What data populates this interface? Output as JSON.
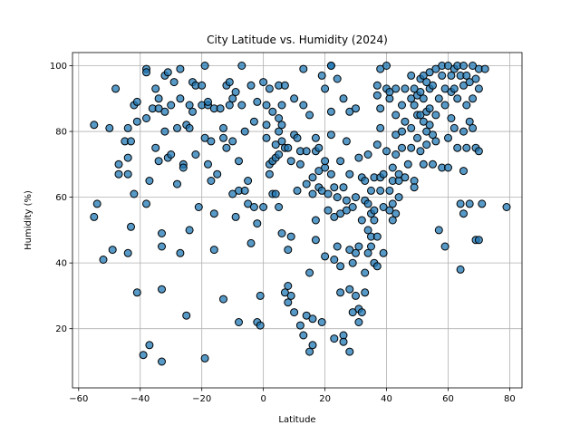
{
  "chart_data": {
    "type": "scatter",
    "title": "City Latitude vs. Humidity (2024)",
    "xlabel": "Latitude",
    "ylabel": "Humidity (%)",
    "xlim": [
      -62,
      84
    ],
    "ylim": [
      2,
      104
    ],
    "xticks": [
      -60,
      -40,
      -20,
      0,
      20,
      40,
      60,
      80
    ],
    "yticks": [
      20,
      40,
      60,
      80,
      100
    ],
    "grid": true,
    "marker_color": "#1f77b4",
    "marker_alpha": 0.75,
    "marker_edge_color": "#000000",
    "points": [
      [
        -55,
        82
      ],
      [
        -55,
        54
      ],
      [
        -54,
        58
      ],
      [
        -52,
        41
      ],
      [
        -50,
        81
      ],
      [
        -49,
        44
      ],
      [
        -48,
        93
      ],
      [
        -47,
        67
      ],
      [
        -47,
        70
      ],
      [
        -45,
        77
      ],
      [
        -44,
        72
      ],
      [
        -44,
        81
      ],
      [
        -44,
        67
      ],
      [
        -44,
        43
      ],
      [
        -43,
        51
      ],
      [
        -43,
        77
      ],
      [
        -42,
        88
      ],
      [
        -42,
        61
      ],
      [
        -41,
        83
      ],
      [
        -41,
        31
      ],
      [
        -41,
        89
      ],
      [
        -39,
        12
      ],
      [
        -38,
        99
      ],
      [
        -38,
        98
      ],
      [
        -38,
        84
      ],
      [
        -38,
        58
      ],
      [
        -37,
        65
      ],
      [
        -37,
        15
      ],
      [
        -36,
        87
      ],
      [
        -35,
        75
      ],
      [
        -35,
        93
      ],
      [
        -34,
        90
      ],
      [
        -34,
        87
      ],
      [
        -34,
        71
      ],
      [
        -33,
        10
      ],
      [
        -33,
        45
      ],
      [
        -33,
        32
      ],
      [
        -33,
        49
      ],
      [
        -32,
        86
      ],
      [
        -32,
        80
      ],
      [
        -32,
        97
      ],
      [
        -31,
        98
      ],
      [
        -31,
        72
      ],
      [
        -30,
        73
      ],
      [
        -30,
        88
      ],
      [
        -29,
        95
      ],
      [
        -28,
        64
      ],
      [
        -28,
        81
      ],
      [
        -27,
        90
      ],
      [
        -27,
        43
      ],
      [
        -27,
        99
      ],
      [
        -26,
        70
      ],
      [
        -26,
        69
      ],
      [
        -25,
        82
      ],
      [
        -25,
        24
      ],
      [
        -24,
        50
      ],
      [
        -24,
        81
      ],
      [
        -24,
        88
      ],
      [
        -23,
        86
      ],
      [
        -23,
        95
      ],
      [
        -22,
        94
      ],
      [
        -22,
        73
      ],
      [
        -21,
        57
      ],
      [
        -20,
        94
      ],
      [
        -20,
        88
      ],
      [
        -19,
        11
      ],
      [
        -19,
        78
      ],
      [
        -19,
        100
      ],
      [
        -18,
        88
      ],
      [
        -18,
        89
      ],
      [
        -18,
        70
      ],
      [
        -17,
        77
      ],
      [
        -17,
        65
      ],
      [
        -16,
        55
      ],
      [
        -16,
        87
      ],
      [
        -16,
        44
      ],
      [
        -15,
        67
      ],
      [
        -14,
        87
      ],
      [
        -13,
        81
      ],
      [
        -13,
        78
      ],
      [
        -13,
        29
      ],
      [
        -12,
        94
      ],
      [
        -12,
        75
      ],
      [
        -11,
        95
      ],
      [
        -11,
        88
      ],
      [
        -10,
        90
      ],
      [
        -10,
        77
      ],
      [
        -10,
        61
      ],
      [
        -9,
        92
      ],
      [
        -9,
        54
      ],
      [
        -8,
        22
      ],
      [
        -8,
        71
      ],
      [
        -8,
        62
      ],
      [
        -7,
        100
      ],
      [
        -7,
        88
      ],
      [
        -6,
        80
      ],
      [
        -6,
        62
      ],
      [
        -5,
        65
      ],
      [
        -5,
        58
      ],
      [
        -4,
        94
      ],
      [
        -4,
        46
      ],
      [
        -3,
        83
      ],
      [
        -3,
        57
      ],
      [
        -2,
        89
      ],
      [
        -2,
        52
      ],
      [
        -2,
        22
      ],
      [
        -1,
        30
      ],
      [
        -1,
        21
      ],
      [
        0,
        57
      ],
      [
        0,
        95
      ],
      [
        1,
        88
      ],
      [
        1,
        82
      ],
      [
        1,
        78
      ],
      [
        2,
        93
      ],
      [
        2,
        70
      ],
      [
        2,
        67
      ],
      [
        3,
        86
      ],
      [
        3,
        71
      ],
      [
        3,
        61
      ],
      [
        4,
        76
      ],
      [
        4,
        72
      ],
      [
        4,
        61
      ],
      [
        5,
        94
      ],
      [
        5,
        80
      ],
      [
        5,
        73
      ],
      [
        5,
        57
      ],
      [
        5,
        84
      ],
      [
        6,
        88
      ],
      [
        6,
        82
      ],
      [
        6,
        77
      ],
      [
        6,
        49
      ],
      [
        7,
        31
      ],
      [
        7,
        75
      ],
      [
        7,
        94
      ],
      [
        8,
        28
      ],
      [
        8,
        33
      ],
      [
        8,
        44
      ],
      [
        8,
        75
      ],
      [
        9,
        48
      ],
      [
        9,
        71
      ],
      [
        9,
        30
      ],
      [
        10,
        25
      ],
      [
        10,
        90
      ],
      [
        10,
        79
      ],
      [
        11,
        62
      ],
      [
        11,
        78
      ],
      [
        12,
        70
      ],
      [
        12,
        74
      ],
      [
        12,
        21
      ],
      [
        13,
        99
      ],
      [
        13,
        18
      ],
      [
        13,
        88
      ],
      [
        14,
        24
      ],
      [
        14,
        74
      ],
      [
        14,
        64
      ],
      [
        15,
        85
      ],
      [
        15,
        37
      ],
      [
        15,
        13
      ],
      [
        16,
        66
      ],
      [
        16,
        23
      ],
      [
        16,
        61
      ],
      [
        16,
        15
      ],
      [
        17,
        78
      ],
      [
        17,
        47
      ],
      [
        17,
        53
      ],
      [
        17,
        74
      ],
      [
        18,
        68
      ],
      [
        18,
        63
      ],
      [
        18,
        75
      ],
      [
        19,
        97
      ],
      [
        19,
        62
      ],
      [
        19,
        22
      ],
      [
        20,
        93
      ],
      [
        20,
        69
      ],
      [
        20,
        42
      ],
      [
        20,
        71
      ],
      [
        21,
        61
      ],
      [
        21,
        56
      ],
      [
        22,
        100
      ],
      [
        22,
        100
      ],
      [
        22,
        86
      ],
      [
        22,
        79
      ],
      [
        22,
        67
      ],
      [
        23,
        17
      ],
      [
        23,
        63
      ],
      [
        23,
        54
      ],
      [
        23,
        41
      ],
      [
        24,
        96
      ],
      [
        24,
        60
      ],
      [
        24,
        45
      ],
      [
        25,
        39
      ],
      [
        25,
        31
      ],
      [
        25,
        55
      ],
      [
        25,
        71
      ],
      [
        26,
        90
      ],
      [
        26,
        63
      ],
      [
        26,
        18
      ],
      [
        26,
        16
      ],
      [
        27,
        77
      ],
      [
        27,
        59
      ],
      [
        27,
        56
      ],
      [
        28,
        86
      ],
      [
        28,
        67
      ],
      [
        28,
        44
      ],
      [
        28,
        32
      ],
      [
        28,
        13
      ],
      [
        29,
        25
      ],
      [
        29,
        57
      ],
      [
        29,
        40
      ],
      [
        30,
        30
      ],
      [
        30,
        60
      ],
      [
        30,
        43
      ],
      [
        30,
        87
      ],
      [
        31,
        26
      ],
      [
        31,
        45
      ],
      [
        31,
        22
      ],
      [
        31,
        72
      ],
      [
        32,
        53
      ],
      [
        32,
        25
      ],
      [
        32,
        66
      ],
      [
        33,
        65
      ],
      [
        33,
        59
      ],
      [
        33,
        37
      ],
      [
        33,
        31
      ],
      [
        34,
        73
      ],
      [
        34,
        50
      ],
      [
        34,
        58
      ],
      [
        34,
        43
      ],
      [
        35,
        48
      ],
      [
        35,
        55
      ],
      [
        35,
        62
      ],
      [
        35,
        45
      ],
      [
        36,
        40
      ],
      [
        36,
        53
      ],
      [
        36,
        56
      ],
      [
        36,
        66
      ],
      [
        37,
        94
      ],
      [
        37,
        91
      ],
      [
        37,
        76
      ],
      [
        37,
        48
      ],
      [
        37,
        39
      ],
      [
        38,
        99
      ],
      [
        38,
        87
      ],
      [
        38,
        81
      ],
      [
        38,
        66
      ],
      [
        38,
        62
      ],
      [
        39,
        43
      ],
      [
        39,
        57
      ],
      [
        39,
        67
      ],
      [
        40,
        93
      ],
      [
        40,
        74
      ],
      [
        40,
        100
      ],
      [
        41,
        90
      ],
      [
        41,
        92
      ],
      [
        41,
        56
      ],
      [
        41,
        62
      ],
      [
        42,
        69
      ],
      [
        42,
        58
      ],
      [
        42,
        65
      ],
      [
        42,
        53
      ],
      [
        43,
        93
      ],
      [
        43,
        85
      ],
      [
        43,
        79
      ],
      [
        43,
        73
      ],
      [
        43,
        55
      ],
      [
        44,
        65
      ],
      [
        44,
        60
      ],
      [
        44,
        67
      ],
      [
        45,
        88
      ],
      [
        45,
        75
      ],
      [
        45,
        80
      ],
      [
        46,
        83
      ],
      [
        46,
        93
      ],
      [
        46,
        66
      ],
      [
        47,
        70
      ],
      [
        48,
        97
      ],
      [
        48,
        90
      ],
      [
        48,
        81
      ],
      [
        48,
        75
      ],
      [
        49,
        93
      ],
      [
        49,
        88
      ],
      [
        49,
        65
      ],
      [
        49,
        63
      ],
      [
        50,
        91
      ],
      [
        50,
        85
      ],
      [
        50,
        78
      ],
      [
        51,
        96
      ],
      [
        51,
        92
      ],
      [
        51,
        85
      ],
      [
        51,
        74
      ],
      [
        52,
        97
      ],
      [
        52,
        90
      ],
      [
        52,
        83
      ],
      [
        52,
        70
      ],
      [
        53,
        95
      ],
      [
        53,
        86
      ],
      [
        53,
        80
      ],
      [
        53,
        76
      ],
      [
        54,
        98
      ],
      [
        54,
        93
      ],
      [
        54,
        87
      ],
      [
        54,
        82
      ],
      [
        55,
        94
      ],
      [
        55,
        79
      ],
      [
        55,
        70
      ],
      [
        56,
        99
      ],
      [
        56,
        85
      ],
      [
        56,
        77
      ],
      [
        57,
        90
      ],
      [
        57,
        50
      ],
      [
        58,
        100
      ],
      [
        58,
        97
      ],
      [
        58,
        69
      ],
      [
        59,
        45
      ],
      [
        59,
        93
      ],
      [
        59,
        88
      ],
      [
        60,
        100
      ],
      [
        60,
        78
      ],
      [
        60,
        69
      ],
      [
        61,
        97
      ],
      [
        61,
        92
      ],
      [
        61,
        84
      ],
      [
        62,
        99
      ],
      [
        62,
        93
      ],
      [
        62,
        81
      ],
      [
        63,
        100
      ],
      [
        63,
        90
      ],
      [
        63,
        75
      ],
      [
        64,
        97
      ],
      [
        64,
        58
      ],
      [
        64,
        38
      ],
      [
        65,
        100
      ],
      [
        65,
        94
      ],
      [
        65,
        80
      ],
      [
        65,
        68
      ],
      [
        65,
        55
      ],
      [
        66,
        97
      ],
      [
        66,
        88
      ],
      [
        66,
        75
      ],
      [
        67,
        95
      ],
      [
        67,
        83
      ],
      [
        67,
        58
      ],
      [
        68,
        100
      ],
      [
        68,
        90
      ],
      [
        68,
        81
      ],
      [
        69,
        96
      ],
      [
        69,
        75
      ],
      [
        69,
        47
      ],
      [
        70,
        99
      ],
      [
        70,
        93
      ],
      [
        70,
        74
      ],
      [
        70,
        47
      ],
      [
        71,
        58
      ],
      [
        72,
        99
      ],
      [
        79,
        57
      ]
    ]
  }
}
